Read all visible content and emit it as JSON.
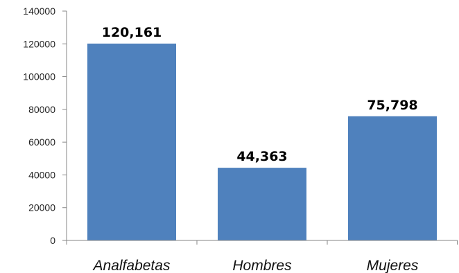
{
  "chart_data": {
    "type": "bar",
    "title": "",
    "xlabel": "",
    "ylabel": "",
    "categories": [
      "Analfabetas",
      "Hombres",
      "Mujeres"
    ],
    "values": [
      120161,
      44363,
      75798
    ],
    "data_labels": [
      "120,161",
      "44,363",
      "75,798"
    ],
    "yticks": [
      0,
      20000,
      40000,
      60000,
      80000,
      100000,
      120000,
      140000
    ],
    "ytick_labels": [
      "0",
      "20000",
      "40000",
      "60000",
      "80000",
      "100000",
      "120000",
      "140000"
    ],
    "ylim": [
      0,
      140000
    ],
    "grid": false,
    "legend": "none",
    "bar_color": "#4f81bd",
    "axis_color": "#868686"
  }
}
